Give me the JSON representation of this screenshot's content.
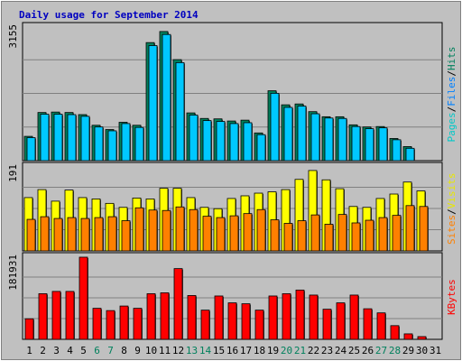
{
  "chart_data": [
    {
      "type": "bar",
      "title": "Daily usage for September 2014",
      "ymax_label": "3155",
      "ylim": [
        0,
        3155
      ],
      "legend": [
        {
          "name": "Pages",
          "color": "#00c8c8"
        },
        {
          "name": "Files",
          "color": "#0080ff"
        },
        {
          "name": "Hits",
          "color": "#00805c"
        }
      ],
      "categories": [
        "1",
        "2",
        "3",
        "4",
        "5",
        "6",
        "7",
        "8",
        "9",
        "10",
        "11",
        "12",
        "13",
        "14",
        "15",
        "16",
        "17",
        "18",
        "19",
        "20",
        "21",
        "22",
        "23",
        "24",
        "25",
        "26",
        "27",
        "28",
        "29",
        "30",
        "31"
      ],
      "series": [
        {
          "name": "Hits",
          "color": "#00805c",
          "values": [
            570,
            1130,
            1140,
            1130,
            1080,
            830,
            730,
            900,
            830,
            2770,
            3030,
            2370,
            1120,
            990,
            980,
            930,
            950,
            650,
            1640,
            1310,
            1330,
            1150,
            1030,
            1030,
            840,
            790,
            800,
            520,
            330,
            0,
            0
          ]
        },
        {
          "name": "Files",
          "color": "#00c8ff",
          "values": [
            540,
            1090,
            1090,
            1080,
            1040,
            790,
            700,
            870,
            780,
            2700,
            2960,
            2300,
            1070,
            940,
            920,
            870,
            890,
            610,
            1580,
            1250,
            1280,
            1100,
            1000,
            990,
            800,
            750,
            770,
            490,
            290,
            0,
            0
          ]
        }
      ]
    },
    {
      "type": "bar",
      "ymax_label": "191",
      "ylim": [
        0,
        191
      ],
      "legend": [
        {
          "name": "Sites",
          "color": "#ff8000"
        },
        {
          "name": "Visits",
          "color": "#e8e800"
        }
      ],
      "categories": [
        "1",
        "2",
        "3",
        "4",
        "5",
        "6",
        "7",
        "8",
        "9",
        "10",
        "11",
        "12",
        "13",
        "14",
        "15",
        "16",
        "17",
        "18",
        "19",
        "20",
        "21",
        "22",
        "23",
        "24",
        "25",
        "26",
        "27",
        "28",
        "29",
        "30",
        "31"
      ],
      "series": [
        {
          "name": "Visits",
          "color": "#ffff00",
          "values": [
            120,
            138,
            112,
            137,
            120,
            117,
            107,
            98,
            119,
            117,
            141,
            141,
            120,
            98,
            95,
            118,
            124,
            130,
            133,
            138,
            161,
            181,
            160,
            140,
            100,
            98,
            118,
            128,
            155,
            135,
            0
          ]
        },
        {
          "name": "Sites",
          "color": "#ff8000",
          "values": [
            71,
            77,
            73,
            75,
            73,
            75,
            77,
            68,
            97,
            92,
            91,
            99,
            93,
            78,
            75,
            79,
            84,
            93,
            70,
            62,
            68,
            81,
            60,
            82,
            63,
            69,
            75,
            80,
            102,
            100,
            0
          ]
        }
      ]
    },
    {
      "type": "bar",
      "ymax_label": "181931",
      "ylim": [
        0,
        181931
      ],
      "legend": [
        {
          "name": "KBytes",
          "color": "#ff0000"
        }
      ],
      "categories": [
        "1",
        "2",
        "3",
        "4",
        "5",
        "6",
        "7",
        "8",
        "9",
        "10",
        "11",
        "12",
        "13",
        "14",
        "15",
        "16",
        "17",
        "18",
        "19",
        "20",
        "21",
        "22",
        "23",
        "24",
        "25",
        "26",
        "27",
        "28",
        "29",
        "30",
        "31"
      ],
      "weekend_days": [
        "6",
        "7",
        "13",
        "14",
        "20",
        "21",
        "27",
        "28"
      ],
      "series": [
        {
          "name": "KBytes",
          "color": "#ff0000",
          "values": [
            45000,
            100000,
            105000,
            105000,
            180000,
            68000,
            63000,
            73000,
            68000,
            100000,
            102000,
            155000,
            96000,
            64000,
            95000,
            80000,
            78000,
            64000,
            95000,
            100000,
            108000,
            97000,
            66000,
            80000,
            97000,
            67000,
            58000,
            30000,
            12000,
            6000,
            0
          ]
        }
      ]
    }
  ]
}
